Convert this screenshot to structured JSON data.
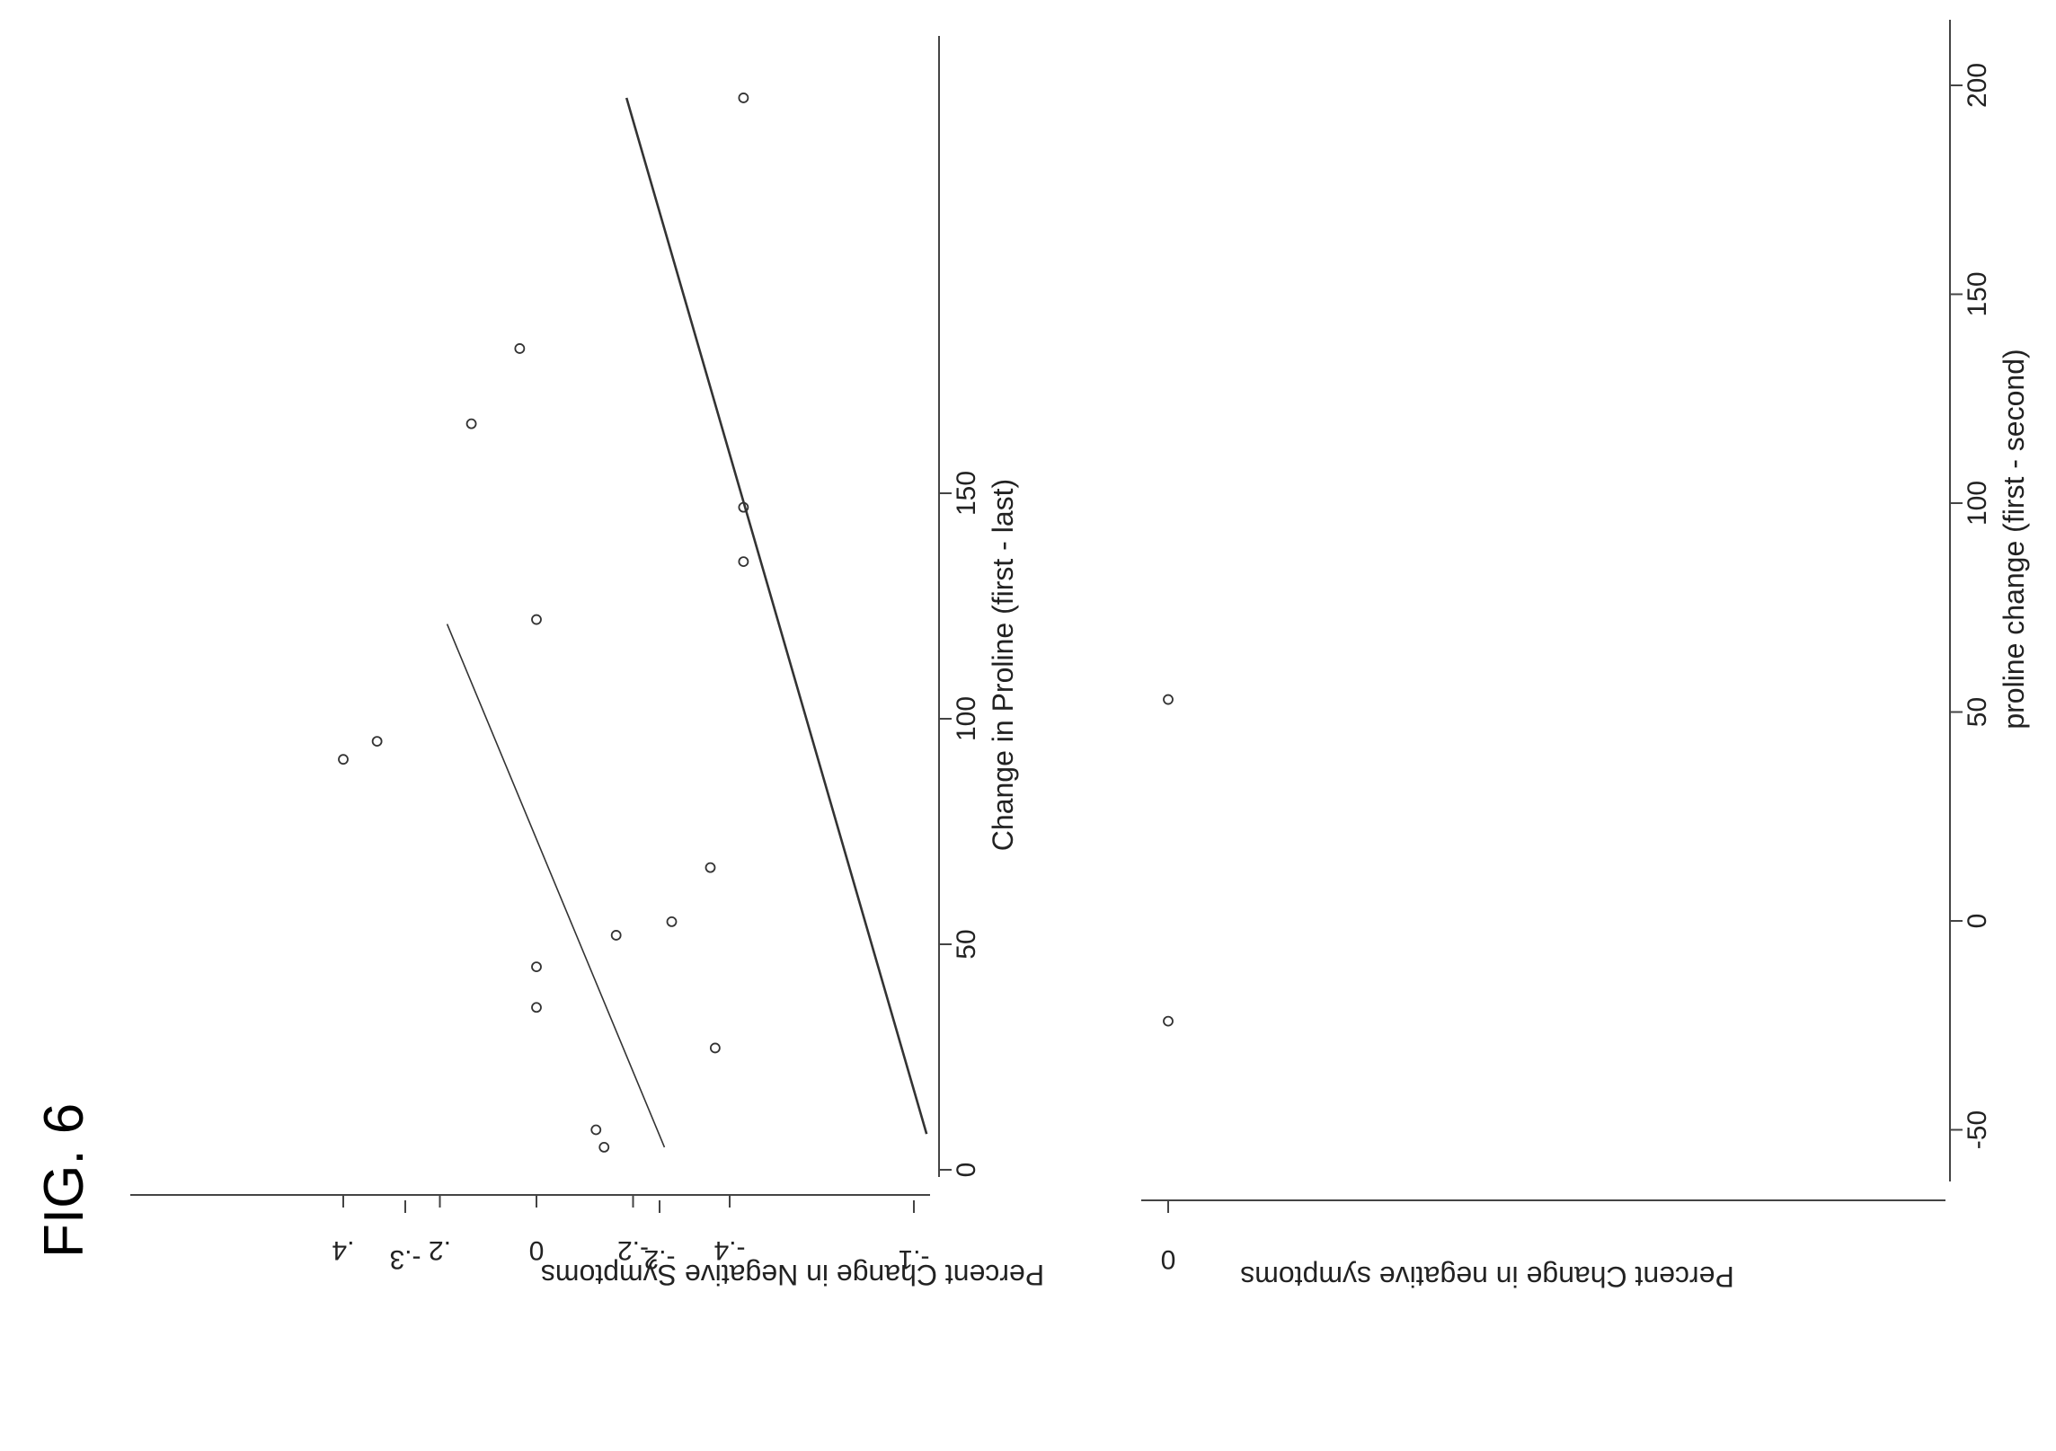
{
  "figure_label": "FIG. 6",
  "chart_data": [
    {
      "type": "scatter",
      "xlabel": "Change in Proline (first - last)",
      "ylabel": "Percent Change in Negative Symptoms",
      "xlim": [
        0,
        150
      ],
      "ylim": [
        -0.4,
        0.4
      ],
      "xticks": [
        0,
        50,
        100,
        150
      ],
      "xtick_labels": [
        "0",
        "50",
        "100",
        "150"
      ],
      "yticks": [
        -0.4,
        -0.2,
        0,
        0.2,
        0.4
      ],
      "ytick_labels": [
        "-.4",
        "-.2",
        "0",
        ".2",
        ".4"
      ],
      "points": [
        {
          "x": 5,
          "y": -0.14
        },
        {
          "x": 27,
          "y": -0.37
        },
        {
          "x": 36,
          "y": 0.0
        },
        {
          "x": 45,
          "y": 0.0
        },
        {
          "x": 52,
          "y": -0.165
        },
        {
          "x": 55,
          "y": -0.28
        },
        {
          "x": 67,
          "y": -0.36
        },
        {
          "x": 91,
          "y": 0.4
        },
        {
          "x": 95,
          "y": 0.33
        },
        {
          "x": 122,
          "y": 0.0
        }
      ],
      "fit_line": [
        {
          "x": 5,
          "y": -0.265
        },
        {
          "x": 121,
          "y": 0.185
        }
      ],
      "grid": false
    },
    {
      "type": "scatter",
      "xlabel": "proline change (first - second)",
      "ylabel": "Percent Change in negative symptoms",
      "xlim": [
        -55,
        200
      ],
      "ylim": [
        -0.3,
        0
      ],
      "xticks": [
        -50,
        0,
        50,
        100,
        150,
        200
      ],
      "xtick_labels": [
        "-50",
        "0",
        "50",
        "100",
        "150",
        "200"
      ],
      "yticks": [
        -0.3,
        -0.2,
        -0.1,
        0
      ],
      "ytick_labels": [
        "-.3",
        "-.2",
        "-.1",
        "0"
      ],
      "points": [
        {
          "x": -50,
          "y": -0.225
        },
        {
          "x": -24,
          "y": 0.0
        },
        {
          "x": 53,
          "y": 0.0
        },
        {
          "x": 86,
          "y": -0.167
        },
        {
          "x": 99,
          "y": -0.167
        },
        {
          "x": 119,
          "y": -0.274
        },
        {
          "x": 137,
          "y": -0.255
        },
        {
          "x": 197,
          "y": -0.167
        }
      ],
      "fit_line": [
        {
          "x": -51,
          "y": -0.095
        },
        {
          "x": 197,
          "y": -0.213
        }
      ],
      "grid": false
    }
  ]
}
